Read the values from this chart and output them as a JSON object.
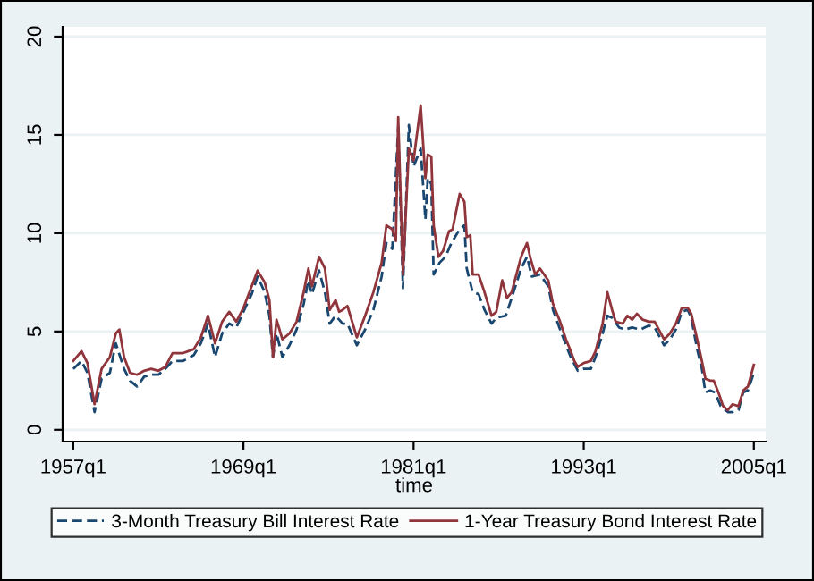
{
  "chart_data": {
    "type": "line",
    "xlabel": "time",
    "xlim": [
      "1956-04",
      "2005-11"
    ],
    "xticks": [
      {
        "value": "1957-01",
        "label": "1957q1"
      },
      {
        "value": "1969-01",
        "label": "1969q1"
      },
      {
        "value": "1981-01",
        "label": "1981q1"
      },
      {
        "value": "1993-01",
        "label": "1993q1"
      },
      {
        "value": "2005-01",
        "label": "2005q1"
      }
    ],
    "ylim": [
      -0.6,
      20.5
    ],
    "yticks": [
      0,
      5,
      10,
      15,
      20
    ],
    "grid": "y",
    "legend": "bottom",
    "series": [
      {
        "name": "3-Month Treasury Bill Interest Rate",
        "color": "#1a476f",
        "line_style": "dashed",
        "x": [
          "1957-01",
          "1957-08",
          "1958-01",
          "1958-07",
          "1959-01",
          "1959-08",
          "1960-01",
          "1960-08",
          "1961-01",
          "1961-07",
          "1962-01",
          "1962-07",
          "1963-01",
          "1963-07",
          "1964-01",
          "1964-10",
          "1965-07",
          "1966-01",
          "1966-07",
          "1967-01",
          "1967-07",
          "1968-01",
          "1968-07",
          "1969-01",
          "1969-08",
          "1970-01",
          "1970-07",
          "1970-11",
          "1971-02",
          "1971-05",
          "1971-10",
          "1972-04",
          "1972-10",
          "1973-04",
          "1973-08",
          "1973-11",
          "1974-05",
          "1974-10",
          "1975-02",
          "1975-07",
          "1976-01",
          "1976-05",
          "1977-01",
          "1977-08",
          "1978-03",
          "1978-10",
          "1979-02",
          "1979-07",
          "1979-12",
          "1980-04",
          "1980-09",
          "1981-01",
          "1981-07",
          "1981-11",
          "1982-01",
          "1982-04",
          "1982-06",
          "1982-11",
          "1983-04",
          "1983-09",
          "1984-04",
          "1984-08",
          "1984-10",
          "1985-03",
          "1985-08",
          "1986-01",
          "1986-07",
          "1986-11",
          "1987-07",
          "1987-12",
          "1988-08",
          "1989-01",
          "1989-05",
          "1989-12",
          "1990-07",
          "1990-11",
          "1991-05",
          "1991-10",
          "1992-02",
          "1992-08",
          "1993-01",
          "1993-07",
          "1993-11",
          "1994-05",
          "1994-09",
          "1995-01",
          "1995-07",
          "1995-12",
          "1996-06",
          "1997-01",
          "1997-08",
          "1998-01",
          "1998-09",
          "1999-02",
          "1999-07",
          "1999-12",
          "2000-05",
          "2000-08",
          "2001-01",
          "2001-05",
          "2001-08",
          "2001-12",
          "2002-04",
          "2002-09",
          "2003-03",
          "2003-07",
          "2003-12",
          "2004-04",
          "2004-08",
          "2005-01"
        ],
        "values": [
          3.1,
          3.5,
          2.9,
          0.9,
          2.6,
          2.9,
          4.4,
          3.1,
          2.5,
          2.2,
          2.7,
          2.8,
          2.8,
          3.1,
          3.5,
          3.5,
          3.8,
          4.4,
          5.4,
          3.7,
          4.9,
          5.4,
          5.2,
          6.0,
          6.9,
          7.8,
          7.0,
          5.8,
          3.7,
          4.9,
          3.7,
          4.3,
          5.1,
          6.4,
          7.6,
          6.9,
          8.1,
          7.0,
          5.4,
          5.8,
          5.4,
          5.4,
          4.3,
          5.1,
          6.1,
          7.8,
          9.5,
          9.2,
          15.4,
          7.2,
          15.5,
          13.4,
          14.3,
          10.7,
          12.8,
          12.5,
          7.9,
          8.5,
          8.8,
          9.5,
          10.2,
          10.4,
          8.2,
          7.0,
          6.9,
          6.1,
          5.4,
          5.7,
          5.8,
          6.7,
          8.2,
          8.8,
          7.8,
          7.9,
          7.3,
          6.1,
          5.1,
          4.3,
          3.7,
          3.0,
          3.1,
          3.1,
          3.7,
          4.9,
          5.8,
          5.7,
          5.2,
          5.1,
          5.2,
          5.1,
          5.3,
          5.2,
          4.3,
          4.6,
          5.1,
          6.0,
          6.1,
          5.7,
          4.1,
          3.1,
          1.9,
          2.0,
          1.9,
          1.2,
          0.9,
          0.9,
          1.0,
          1.9,
          2.0,
          2.9
        ]
      },
      {
        "name": "1-Year Treasury Bond Interest Rate",
        "color": "#90353b",
        "line_style": "solid",
        "x": [
          "1957-01",
          "1957-08",
          "1958-01",
          "1958-07",
          "1959-01",
          "1959-08",
          "1960-01",
          "1960-04",
          "1960-08",
          "1961-01",
          "1961-07",
          "1962-01",
          "1962-07",
          "1963-01",
          "1963-07",
          "1964-01",
          "1964-10",
          "1965-07",
          "1966-01",
          "1966-07",
          "1967-01",
          "1967-07",
          "1968-01",
          "1968-07",
          "1969-01",
          "1969-08",
          "1970-01",
          "1970-07",
          "1970-11",
          "1971-02",
          "1971-05",
          "1971-10",
          "1972-04",
          "1972-10",
          "1973-04",
          "1973-08",
          "1973-11",
          "1974-05",
          "1974-10",
          "1975-02",
          "1975-07",
          "1975-10",
          "1976-01",
          "1976-05",
          "1977-01",
          "1977-08",
          "1978-03",
          "1978-10",
          "1979-02",
          "1979-07",
          "1979-10",
          "1979-12",
          "1980-04",
          "1980-09",
          "1981-01",
          "1981-07",
          "1981-11",
          "1982-01",
          "1982-04",
          "1982-06",
          "1982-10",
          "1983-02",
          "1983-07",
          "1983-10",
          "1984-04",
          "1984-08",
          "1984-10",
          "1985-01",
          "1985-03",
          "1985-08",
          "1986-01",
          "1986-07",
          "1986-11",
          "1987-04",
          "1987-08",
          "1987-12",
          "1988-08",
          "1989-01",
          "1989-04",
          "1989-08",
          "1989-12",
          "1990-07",
          "1990-11",
          "1991-05",
          "1991-10",
          "1992-02",
          "1992-05",
          "1992-08",
          "1993-01",
          "1993-07",
          "1993-11",
          "1994-05",
          "1994-09",
          "1995-01",
          "1995-04",
          "1995-10",
          "1996-02",
          "1996-06",
          "1996-10",
          "1997-03",
          "1997-08",
          "1998-01",
          "1998-09",
          "1999-02",
          "1999-07",
          "1999-12",
          "2000-05",
          "2000-08",
          "2001-01",
          "2001-05",
          "2001-08",
          "2001-12",
          "2002-03",
          "2002-07",
          "2002-11",
          "2003-03",
          "2003-07",
          "2003-12",
          "2004-04",
          "2004-08",
          "2005-01"
        ],
        "values": [
          3.5,
          4.0,
          3.4,
          1.3,
          3.1,
          3.7,
          4.9,
          5.1,
          3.7,
          2.9,
          2.8,
          3.0,
          3.1,
          3.0,
          3.2,
          3.9,
          3.9,
          4.1,
          4.7,
          5.8,
          4.4,
          5.5,
          6.0,
          5.5,
          6.2,
          7.3,
          8.1,
          7.5,
          6.6,
          3.7,
          5.6,
          4.6,
          4.9,
          5.5,
          7.0,
          8.2,
          7.3,
          8.8,
          8.2,
          6.1,
          6.6,
          6.0,
          6.1,
          6.3,
          4.7,
          5.8,
          7.0,
          8.5,
          10.4,
          10.2,
          9.6,
          15.9,
          7.9,
          14.3,
          13.7,
          16.5,
          12.8,
          14.0,
          13.9,
          10.4,
          8.8,
          9.1,
          10.1,
          10.2,
          12.0,
          11.6,
          9.8,
          9.9,
          7.9,
          7.9,
          7.0,
          5.8,
          6.0,
          7.6,
          6.7,
          7.0,
          8.8,
          9.5,
          8.7,
          7.9,
          8.2,
          7.6,
          6.4,
          5.5,
          4.6,
          4.0,
          3.5,
          3.2,
          3.4,
          3.5,
          4.0,
          5.4,
          7.0,
          6.1,
          5.5,
          5.4,
          5.8,
          5.6,
          5.9,
          5.6,
          5.5,
          5.5,
          4.6,
          4.9,
          5.4,
          6.2,
          6.2,
          5.9,
          4.6,
          3.5,
          2.6,
          2.5,
          2.5,
          1.9,
          1.2,
          1.0,
          1.3,
          1.2,
          2.0,
          2.2,
          3.3
        ]
      }
    ]
  }
}
